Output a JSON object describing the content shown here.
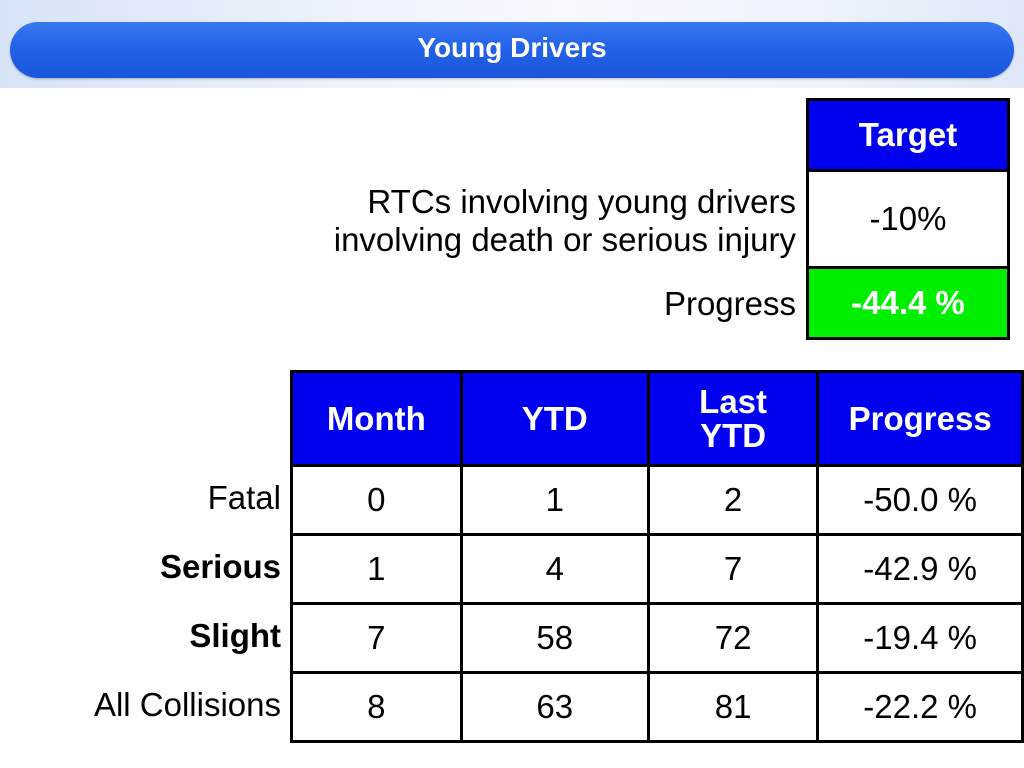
{
  "title": "Young Drivers",
  "target_section": {
    "description_line1": "RTCs involving young drivers",
    "description_line2": "involving death or serious injury",
    "target_header": "Target",
    "target_value": "-10%",
    "progress_label": "Progress",
    "progress_value": "-44.4 %",
    "progress_color": "#00ee00"
  },
  "table": {
    "columns": [
      {
        "line1": "Month",
        "line2": ""
      },
      {
        "line1": "YTD",
        "line2": ""
      },
      {
        "line1": "Last",
        "line2": "YTD"
      },
      {
        "line1": "Progress",
        "line2": ""
      }
    ],
    "rows": [
      {
        "label": "Fatal",
        "month": "0",
        "ytd": "1",
        "last_ytd": "2",
        "progress": "-50.0 %"
      },
      {
        "label": "Serious",
        "month": "1",
        "ytd": "4",
        "last_ytd": "7",
        "progress": "-42.9 %"
      },
      {
        "label": "Slight",
        "month": "7",
        "ytd": "58",
        "last_ytd": "72",
        "progress": "-19.4 %"
      },
      {
        "label": "All Collisions",
        "month": "8",
        "ytd": "63",
        "last_ytd": "81",
        "progress": "-22.2 %"
      }
    ]
  },
  "colors": {
    "header_blue": "#0000ee",
    "title_pill": "#2263e8",
    "progress_green": "#00ee00"
  }
}
